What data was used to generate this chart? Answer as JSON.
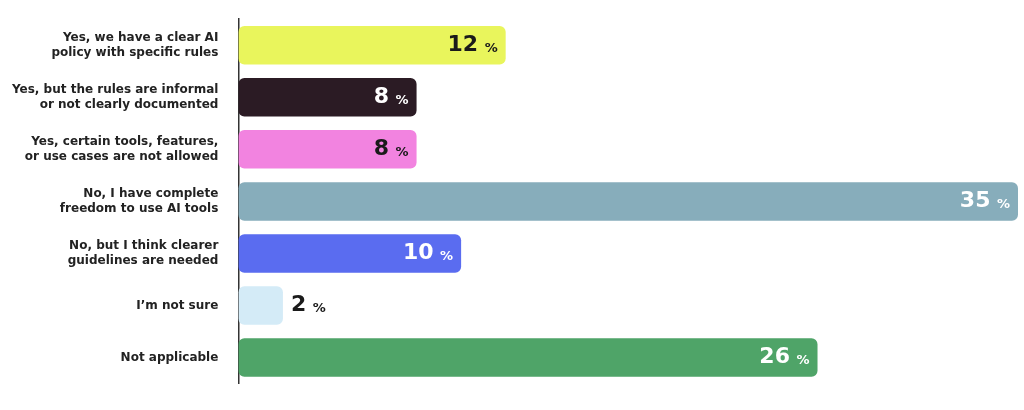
{
  "chart_data": {
    "type": "bar",
    "orientation": "horizontal",
    "categories": [
      "Yes, we have a clear AI policy with specific rules",
      "Yes, but the rules are informal or not clearly documented",
      "Yes, certain tools, features, or use cases are not allowed",
      "No, I have complete freedom to use AI tools",
      "No, but I think clearer guidelines are needed",
      "I’m not sure",
      "Not applicable"
    ],
    "values": [
      12,
      8,
      8,
      35,
      10,
      2,
      26
    ],
    "value_labels": [
      "12 %",
      "8 %",
      "8 %",
      "35 %",
      "10 %",
      "2 %",
      "26 %"
    ],
    "colors": [
      "#e9f55c",
      "#2b1b24",
      "#f283e0",
      "#87adbb",
      "#5a6cf0",
      "#d4ebf7",
      "#4fa468"
    ],
    "legend": false,
    "tick_labels": "y"
  }
}
